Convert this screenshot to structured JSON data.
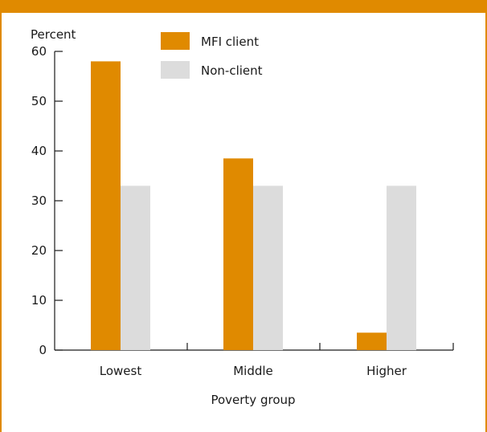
{
  "colors": {
    "accent": "#E08A00",
    "mfi": "#E08A00",
    "nonclient": "#DCDCDC",
    "axis": "#1a1a1a"
  },
  "chart_data": {
    "type": "bar",
    "title": "",
    "ylabel": "Percent",
    "xlabel": "Poverty group",
    "ylim": [
      0,
      60
    ],
    "yticks": [
      0,
      10,
      20,
      30,
      40,
      50,
      60
    ],
    "categories": [
      "Lowest",
      "Middle",
      "Higher"
    ],
    "series": [
      {
        "name": "MFI client",
        "values": [
          58,
          38.5,
          3.5
        ],
        "color": "#E08A00"
      },
      {
        "name": "Non-client",
        "values": [
          33,
          33,
          33
        ],
        "color": "#DCDCDC"
      }
    ],
    "legend": "top-center",
    "grid": false
  }
}
